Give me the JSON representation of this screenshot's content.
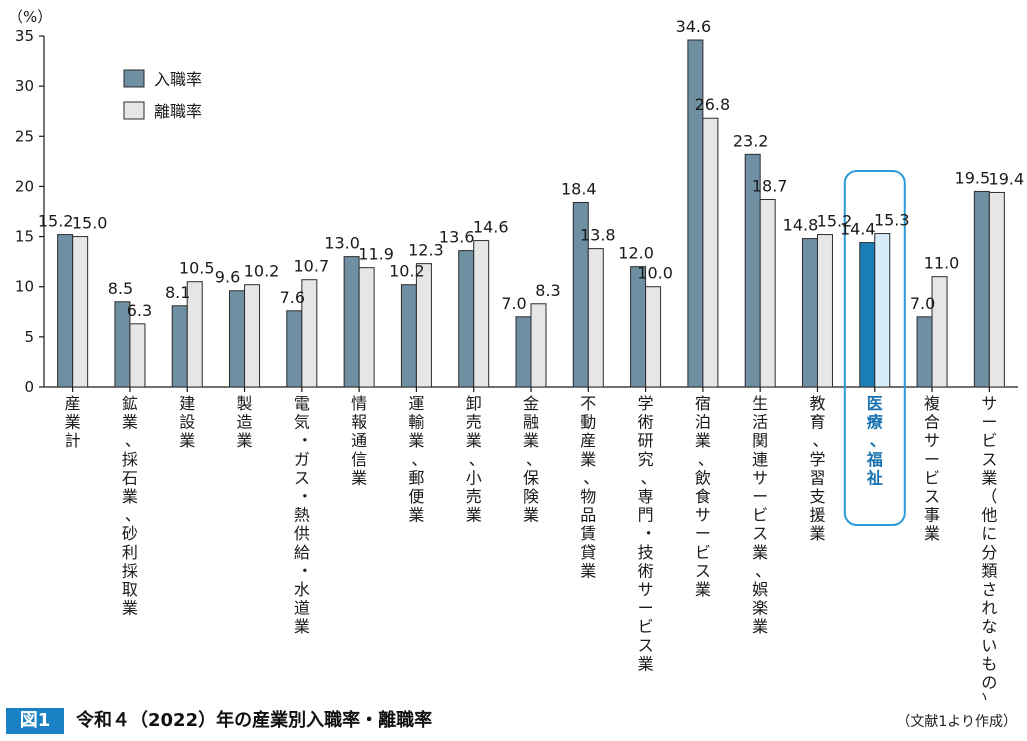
{
  "chart_data": {
    "type": "bar",
    "ylabel": "（%）",
    "ylim": [
      0,
      35
    ],
    "yticks": [
      0,
      5,
      10,
      15,
      20,
      25,
      30,
      35
    ],
    "grid": false,
    "legend_position": "top-left",
    "categories": [
      "産業計",
      "鉱業、採石業、砂利採取業",
      "建設業",
      "製造業",
      "電気・ガス・熱供給・水道業",
      "情報通信業",
      "運輸業、郵便業",
      "卸売業、小売業",
      "金融業、保険業",
      "不動産業、物品賃貸業",
      "学術研究、専門・技術サービス業",
      "宿泊業、飲食サービス業",
      "生活関連サービス業、娯楽業",
      "教育、学習支援業",
      "医療、福祉",
      "複合サービス事業",
      "サービス業（他に分類されないもの）"
    ],
    "highlight_category": "医療、福祉",
    "series": [
      {
        "name": "入職率",
        "color": "#6f8fa3",
        "highlight_color": "#1a7db5",
        "values": [
          15.2,
          8.5,
          8.1,
          9.6,
          7.6,
          13.0,
          10.2,
          13.6,
          7.0,
          18.4,
          12.0,
          34.6,
          23.2,
          14.8,
          14.4,
          7.0,
          19.5
        ]
      },
      {
        "name": "離職率",
        "color": "#e6e6e6",
        "highlight_color": "#d6ecf8",
        "values": [
          15.0,
          6.3,
          10.5,
          10.2,
          10.7,
          11.9,
          12.3,
          14.6,
          8.3,
          13.8,
          10.0,
          26.8,
          18.7,
          15.2,
          15.3,
          11.0,
          19.4
        ]
      }
    ],
    "data_labels": [
      [
        "15.2",
        "8.5",
        "8.1",
        "9.6",
        "7.6",
        "13.0",
        "10.2",
        "13.6",
        "7.0",
        "18.4",
        "12.0",
        "34.6",
        "23.2",
        "14.8",
        "14.4",
        "7.0",
        "19.5"
      ],
      [
        "15.0",
        "6.3",
        "10.5",
        "10.2",
        "10.7",
        "11.9",
        "12.3",
        "14.6",
        "8.3",
        "13.8",
        "10.0",
        "26.8",
        "18.7",
        "15.2",
        "15.3",
        "11.0",
        "19.4"
      ]
    ]
  },
  "figure": {
    "badge": "図1",
    "title": "令和４（2022）年の産業別入職率・離職率",
    "source": "（文献1より作成）"
  },
  "colors": {
    "axis": "#1a1a1a",
    "highlight_box": "#2b9ad6",
    "highlight_text": "#1a73b0",
    "badge": "#1a82c4"
  }
}
